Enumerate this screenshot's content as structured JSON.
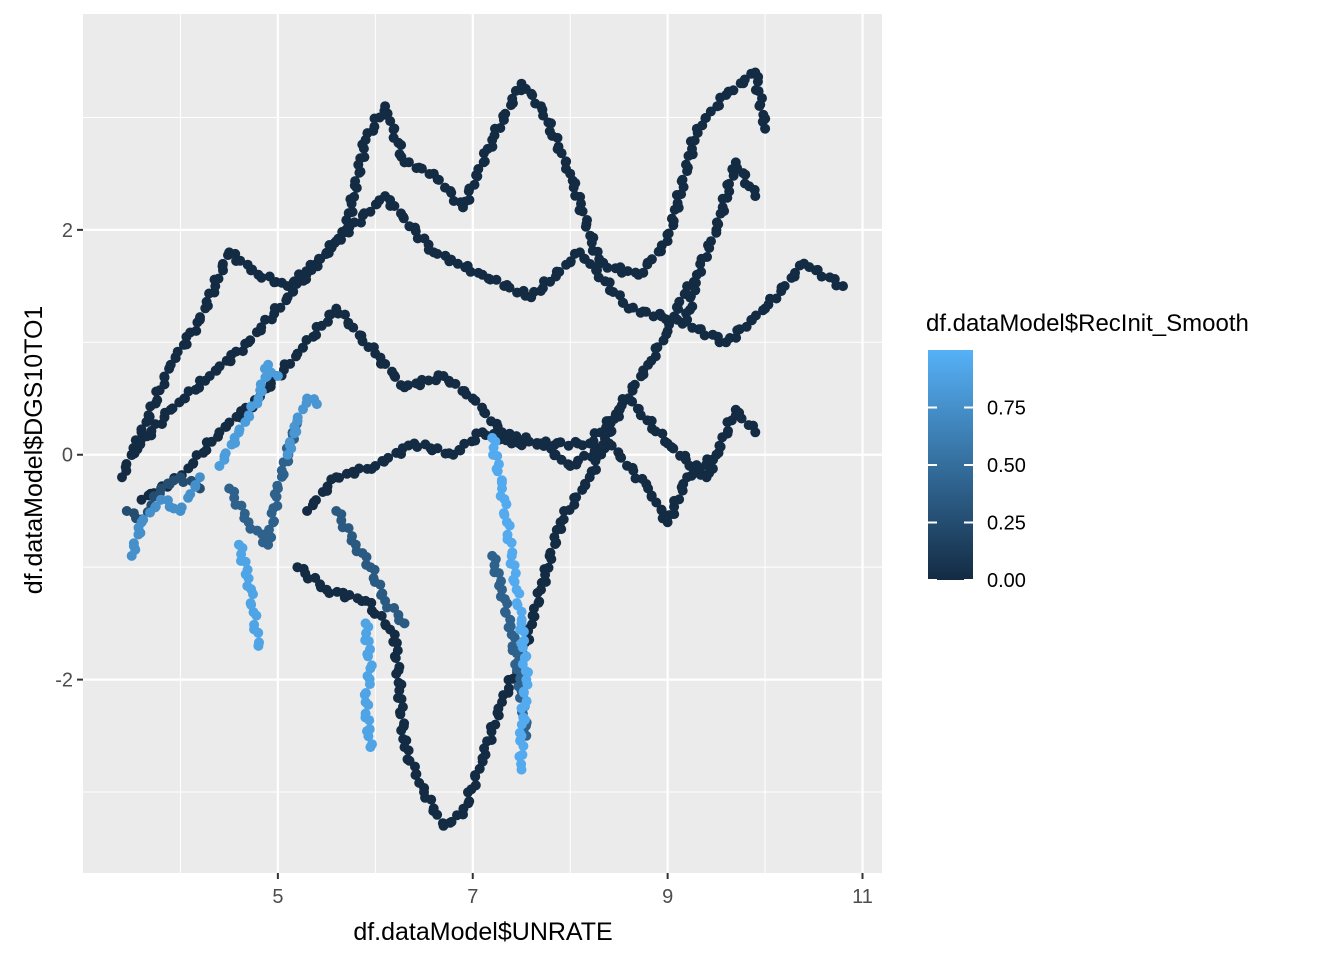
{
  "chart_data": {
    "type": "scatter",
    "title": "",
    "xlabel": "df.dataModel$UNRATE",
    "ylabel": "df.dataModel$DGS10TO1",
    "xlim": [
      3.0,
      11.2
    ],
    "ylim": [
      -3.72,
      3.92
    ],
    "x_ticks": [
      5,
      7,
      9,
      11
    ],
    "x_tick_labels": [
      "5",
      "7",
      "9",
      "11"
    ],
    "x_minor_ticks": [
      4,
      6,
      8,
      10
    ],
    "y_ticks": [
      -2,
      0,
      2
    ],
    "y_tick_labels": [
      "-2",
      "0",
      "2"
    ],
    "y_minor_ticks": [
      -3,
      -1,
      1,
      3
    ],
    "grid": true,
    "panel_color": "#EBEBEB",
    "grid_color": "#FFFFFF",
    "legend": {
      "title": "df.dataModel$RecInit_Smooth",
      "position": "right",
      "scale_min": 0,
      "scale_max": 1,
      "ticks": [
        0.0,
        0.25,
        0.5,
        0.75
      ],
      "tick_labels": [
        "0.00",
        "0.25",
        "0.50",
        "0.75"
      ],
      "low_color": "#132B43",
      "high_color": "#56B1F7"
    },
    "color_variable": "df.dataModel$RecInit_Smooth",
    "traces": [
      {
        "name": "trace-1",
        "c": 0.0,
        "points": [
          [
            3.4,
            -0.2
          ],
          [
            3.6,
            0.2
          ],
          [
            3.9,
            0.8
          ],
          [
            4.2,
            1.2
          ],
          [
            4.5,
            1.8
          ],
          [
            4.8,
            1.6
          ],
          [
            5.1,
            1.5
          ],
          [
            5.4,
            1.7
          ],
          [
            5.7,
            2.0
          ],
          [
            5.9,
            2.8
          ],
          [
            6.1,
            3.1
          ],
          [
            6.3,
            2.6
          ],
          [
            6.6,
            2.5
          ],
          [
            6.9,
            2.2
          ],
          [
            7.2,
            2.8
          ],
          [
            7.5,
            3.3
          ],
          [
            7.7,
            3.1
          ],
          [
            8.0,
            2.5
          ],
          [
            8.3,
            1.7
          ],
          [
            8.7,
            1.6
          ],
          [
            9.0,
            1.9
          ],
          [
            9.3,
            2.9
          ],
          [
            9.6,
            3.2
          ],
          [
            9.9,
            3.4
          ],
          [
            10.0,
            2.9
          ]
        ]
      },
      {
        "name": "trace-2",
        "c": 0.0,
        "points": [
          [
            3.5,
            0.0
          ],
          [
            3.9,
            0.4
          ],
          [
            4.3,
            0.7
          ],
          [
            4.7,
            1.0
          ],
          [
            5.1,
            1.4
          ],
          [
            5.6,
            1.9
          ],
          [
            6.1,
            2.3
          ],
          [
            6.6,
            1.8
          ],
          [
            7.1,
            1.6
          ],
          [
            7.6,
            1.4
          ],
          [
            8.1,
            1.8
          ],
          [
            8.6,
            1.3
          ],
          [
            9.1,
            1.2
          ],
          [
            9.6,
            1.0
          ],
          [
            10.0,
            1.3
          ],
          [
            10.4,
            1.7
          ],
          [
            10.8,
            1.5
          ]
        ]
      },
      {
        "name": "trace-3",
        "c": 0.0,
        "points": [
          [
            3.6,
            -0.4
          ],
          [
            4.0,
            -0.2
          ],
          [
            4.4,
            0.2
          ],
          [
            4.8,
            0.5
          ],
          [
            5.2,
            0.9
          ],
          [
            5.6,
            1.3
          ],
          [
            6.0,
            0.9
          ],
          [
            6.3,
            0.6
          ],
          [
            6.7,
            0.7
          ],
          [
            7.0,
            0.5
          ],
          [
            7.3,
            0.2
          ],
          [
            7.7,
            0.1
          ],
          [
            8.2,
            0.1
          ],
          [
            8.6,
            0.5
          ],
          [
            9.0,
            0.1
          ],
          [
            9.4,
            -0.2
          ],
          [
            9.7,
            0.4
          ],
          [
            9.9,
            0.2
          ]
        ]
      },
      {
        "name": "trace-4",
        "c": 0.0,
        "points": [
          [
            5.3,
            -0.5
          ],
          [
            5.6,
            -0.2
          ],
          [
            6.0,
            -0.1
          ],
          [
            6.4,
            0.1
          ],
          [
            6.8,
            0.0
          ],
          [
            7.1,
            0.2
          ],
          [
            7.4,
            0.1
          ],
          [
            7.7,
            0.1
          ],
          [
            8.0,
            -0.1
          ],
          [
            8.4,
            0.1
          ],
          [
            8.8,
            -0.3
          ],
          [
            9.0,
            -0.6
          ],
          [
            9.2,
            -0.2
          ],
          [
            9.5,
            0.0
          ]
        ]
      },
      {
        "name": "trace-5",
        "c": 0.0,
        "points": [
          [
            5.2,
            -1.0
          ],
          [
            5.5,
            -1.2
          ],
          [
            5.9,
            -1.3
          ],
          [
            6.2,
            -1.6
          ],
          [
            6.3,
            -2.6
          ],
          [
            6.5,
            -3.0
          ],
          [
            6.7,
            -3.3
          ],
          [
            6.9,
            -3.2
          ],
          [
            7.1,
            -2.7
          ],
          [
            7.3,
            -2.2
          ],
          [
            7.5,
            -1.8
          ],
          [
            7.7,
            -1.2
          ],
          [
            7.9,
            -0.6
          ],
          [
            8.2,
            -0.2
          ],
          [
            8.5,
            0.4
          ],
          [
            8.8,
            0.8
          ],
          [
            9.0,
            1.1
          ],
          [
            9.2,
            1.5
          ]
        ]
      },
      {
        "name": "trace-6",
        "c": 0.0,
        "points": [
          [
            9.9,
            2.3
          ],
          [
            9.7,
            2.6
          ],
          [
            9.5,
            2.0
          ],
          [
            9.3,
            1.6
          ],
          [
            9.2,
            1.2
          ]
        ]
      },
      {
        "name": "trace-7",
        "c": 0.25,
        "points": [
          [
            3.45,
            -0.5
          ],
          [
            3.6,
            -0.6
          ],
          [
            3.8,
            -0.3
          ],
          [
            4.0,
            -0.2
          ],
          [
            4.2,
            -0.3
          ]
        ]
      },
      {
        "name": "trace-8",
        "c": 0.4,
        "points": [
          [
            4.5,
            -0.3
          ],
          [
            4.7,
            -0.6
          ],
          [
            4.9,
            -0.8
          ],
          [
            5.0,
            -0.3
          ],
          [
            5.2,
            0.3
          ]
        ]
      },
      {
        "name": "trace-9",
        "c": 0.35,
        "points": [
          [
            5.6,
            -0.5
          ],
          [
            5.8,
            -0.8
          ],
          [
            5.95,
            -1.0
          ],
          [
            6.1,
            -1.3
          ],
          [
            6.3,
            -1.5
          ]
        ]
      },
      {
        "name": "trace-10",
        "c": 0.4,
        "points": [
          [
            7.2,
            -0.9
          ],
          [
            7.3,
            -1.2
          ],
          [
            7.4,
            -1.6
          ],
          [
            7.5,
            -2.1
          ],
          [
            7.55,
            -2.5
          ]
        ]
      },
      {
        "name": "trace-11",
        "c": 0.75,
        "points": [
          [
            3.5,
            -0.9
          ],
          [
            3.6,
            -0.6
          ],
          [
            3.8,
            -0.4
          ],
          [
            4.0,
            -0.5
          ],
          [
            4.1,
            -0.35
          ],
          [
            4.2,
            -0.2
          ]
        ]
      },
      {
        "name": "trace-12",
        "c": 0.85,
        "points": [
          [
            4.4,
            -0.1
          ],
          [
            4.6,
            0.2
          ],
          [
            4.8,
            0.5
          ],
          [
            4.9,
            0.8
          ],
          [
            5.0,
            0.7
          ]
        ]
      },
      {
        "name": "trace-13",
        "c": 0.8,
        "points": [
          [
            5.1,
            0.0
          ],
          [
            5.2,
            0.3
          ],
          [
            5.3,
            0.5
          ],
          [
            5.4,
            0.45
          ]
        ]
      },
      {
        "name": "trace-14",
        "c": 0.9,
        "points": [
          [
            4.6,
            -0.8
          ],
          [
            4.7,
            -1.1
          ],
          [
            4.75,
            -1.4
          ],
          [
            4.8,
            -1.7
          ]
        ]
      },
      {
        "name": "trace-15",
        "c": 0.9,
        "points": [
          [
            5.9,
            -1.5
          ],
          [
            5.95,
            -1.9
          ],
          [
            5.9,
            -2.2
          ],
          [
            5.95,
            -2.6
          ]
        ]
      },
      {
        "name": "trace-16",
        "c": 0.95,
        "points": [
          [
            7.2,
            0.15
          ],
          [
            7.3,
            -0.3
          ],
          [
            7.35,
            -0.6
          ],
          [
            7.4,
            -0.9
          ],
          [
            7.45,
            -1.2
          ],
          [
            7.5,
            -1.5
          ],
          [
            7.55,
            -2.0
          ],
          [
            7.5,
            -2.5
          ],
          [
            7.5,
            -2.8
          ]
        ]
      }
    ]
  }
}
